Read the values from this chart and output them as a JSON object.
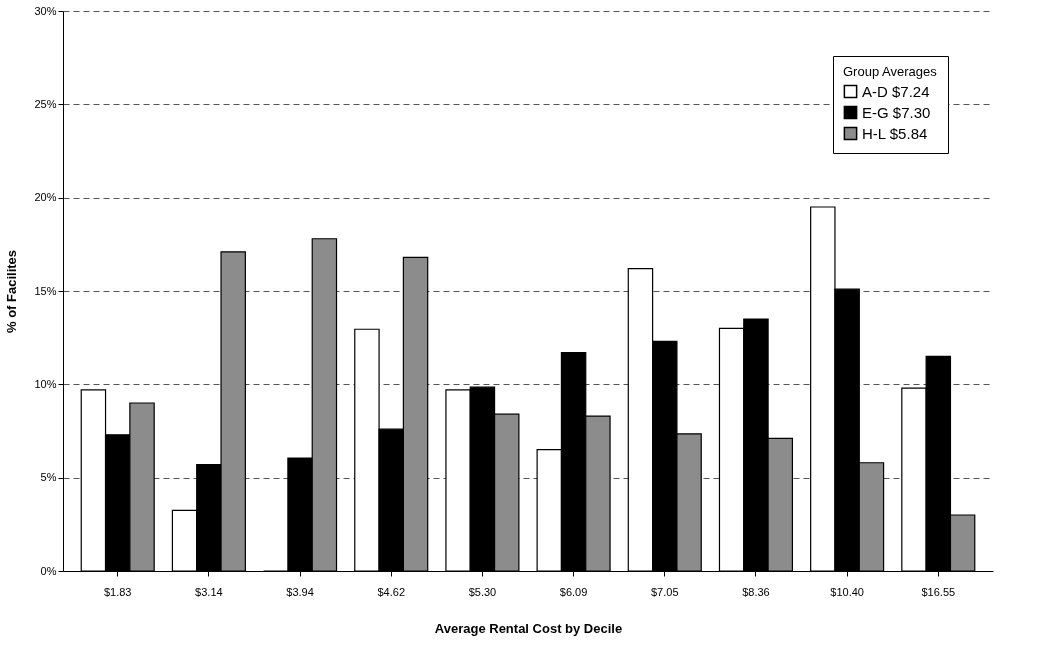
{
  "chart_data": {
    "type": "bar",
    "xlabel": "Average Rental Cost by Decile",
    "ylabel": "% of Facilites",
    "legend_title": "Group Averages",
    "categories": [
      "$1.83",
      "$3.14",
      "$3.94",
      "$4.62",
      "$5.30",
      "$6.09",
      "$7.05",
      "$8.36",
      "$10.40",
      "$16.55"
    ],
    "series": [
      {
        "name": "A-D $7.24",
        "color": "#ffffff",
        "values": [
          9.7,
          3.25,
          0,
          12.95,
          9.7,
          6.5,
          16.2,
          13.0,
          19.5,
          9.8
        ]
      },
      {
        "name": "E-G $7.30",
        "color": "#000000",
        "values": [
          7.3,
          5.7,
          6.05,
          7.6,
          9.85,
          11.7,
          12.3,
          13.5,
          15.1,
          11.5
        ]
      },
      {
        "name": "H-L $5.84",
        "color": "#8c8c8c",
        "values": [
          9.0,
          17.1,
          17.8,
          16.8,
          8.4,
          8.3,
          7.35,
          7.1,
          5.8,
          3.0
        ]
      }
    ],
    "ylim": [
      0,
      30
    ],
    "yticks": [
      {
        "value": 0,
        "label": "0%"
      },
      {
        "value": 5,
        "label": "5%"
      },
      {
        "value": 10,
        "label": "10%"
      },
      {
        "value": 15,
        "label": "15%"
      },
      {
        "value": 20,
        "label": "20%"
      },
      {
        "value": 25,
        "label": "25%"
      },
      {
        "value": 30,
        "label": "30%"
      }
    ],
    "grid": "y",
    "legend": "top right"
  }
}
